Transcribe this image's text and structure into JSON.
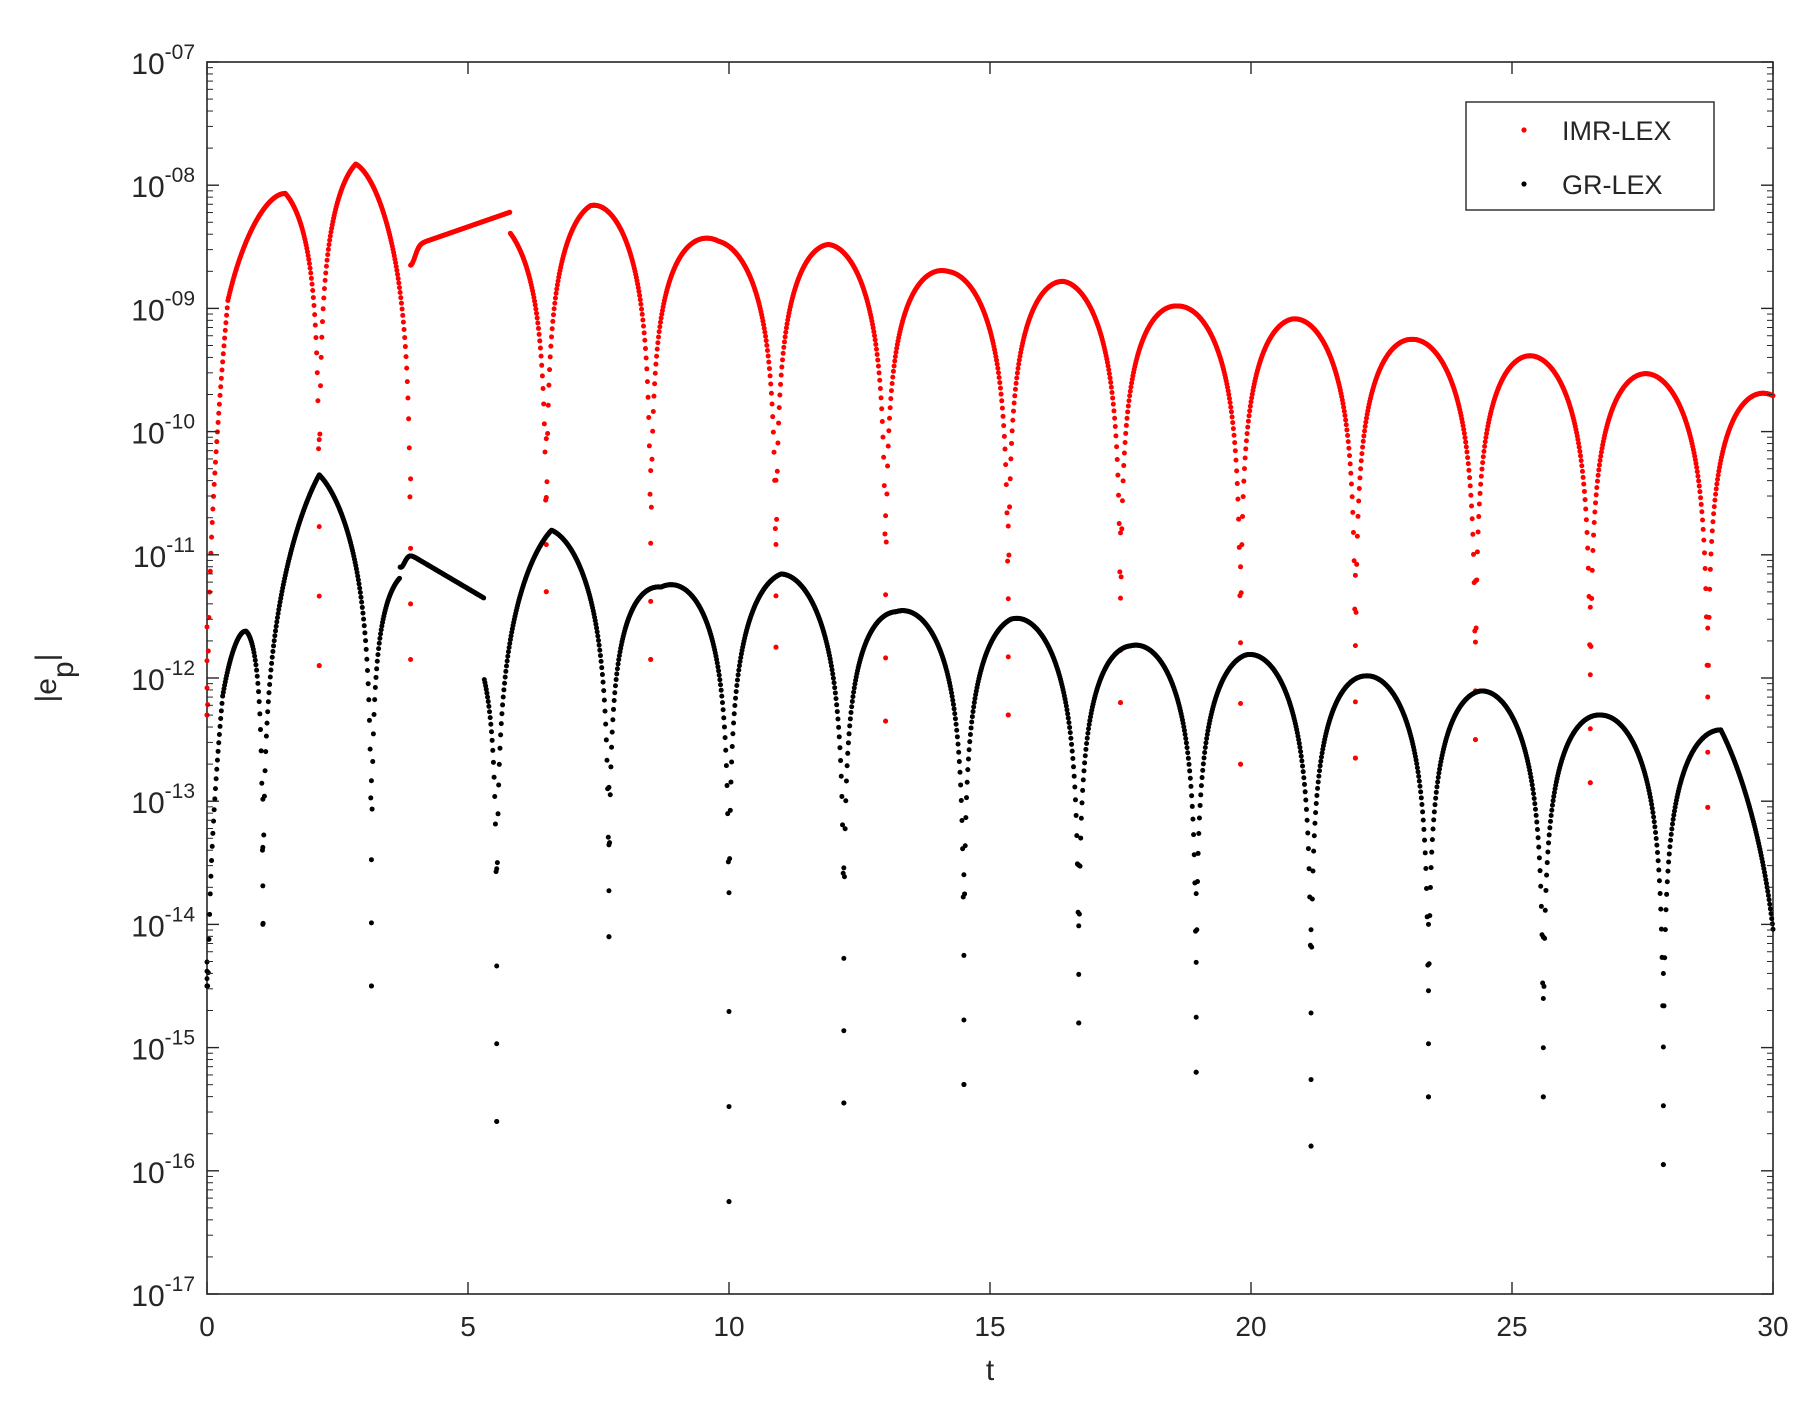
{
  "chart_data": {
    "type": "scatter",
    "title": "",
    "xlabel": "t",
    "ylabel": "|e_p|",
    "ylabel_main": "|e",
    "ylabel_sub": "p",
    "ylabel_close": "|",
    "xlim": [
      0,
      30
    ],
    "ylim": [
      1e-17,
      1e-07
    ],
    "yscale": "log",
    "grid": false,
    "legend_position": "top-right",
    "x_ticks": [
      0,
      5,
      10,
      15,
      20,
      25,
      30
    ],
    "x_tick_labels": [
      "0",
      "5",
      "10",
      "15",
      "20",
      "25",
      "30"
    ],
    "y_tick_exponents": [
      -17,
      -16,
      -15,
      -14,
      -13,
      -12,
      -11,
      -10,
      -9,
      -8,
      -7
    ],
    "y_tick_labels": [
      {
        "base": "10",
        "exp": "-17"
      },
      {
        "base": "10",
        "exp": "-16"
      },
      {
        "base": "10",
        "exp": "-15"
      },
      {
        "base": "10",
        "exp": "-14"
      },
      {
        "base": "10",
        "exp": "-13"
      },
      {
        "base": "10",
        "exp": "-12"
      },
      {
        "base": "10",
        "exp": "-11"
      },
      {
        "base": "10",
        "exp": "-10"
      },
      {
        "base": "10",
        "exp": "-09"
      },
      {
        "base": "10",
        "exp": "-08"
      },
      {
        "base": "10",
        "exp": "-07"
      }
    ],
    "series": [
      {
        "name": "IMR-LEX",
        "color": "#ff0000",
        "marker": "dot",
        "envelope_log10": [
          [
            0.0,
            -10.0
          ],
          [
            0.4,
            -8.6
          ],
          [
            1.5,
            -7.95
          ],
          [
            2.85,
            -7.8
          ],
          [
            4.0,
            -8.45
          ],
          [
            5.8,
            -8.22
          ],
          [
            7.35,
            -8.15
          ],
          [
            9.8,
            -8.45
          ],
          [
            11.9,
            -8.48
          ],
          [
            14.2,
            -8.7
          ],
          [
            16.4,
            -8.78
          ],
          [
            18.6,
            -8.98
          ],
          [
            20.8,
            -9.08
          ],
          [
            23.1,
            -9.25
          ],
          [
            25.3,
            -9.38
          ],
          [
            27.6,
            -9.53
          ],
          [
            30.0,
            -9.7
          ]
        ],
        "zeros_t": [
          0.0,
          2.15,
          3.9,
          6.5,
          8.5,
          10.9,
          13.0,
          15.35,
          17.5,
          19.8,
          22.0,
          24.3,
          26.5,
          28.75
        ],
        "dip_floor_log10": [
          -12.3,
          -11.9,
          -11.85,
          -11.3,
          -11.85,
          -11.75,
          -12.35,
          -12.3,
          -12.2,
          -12.7,
          -12.65,
          -12.5,
          -12.85,
          -13.05
        ],
        "plateau_t": [
          3.9,
          5.8
        ],
        "plateau_log10": [
          -8.5,
          -8.22
        ]
      },
      {
        "name": "GR-LEX",
        "color": "#000000",
        "marker": "dot",
        "envelope_log10": [
          [
            0.0,
            -13.0
          ],
          [
            0.3,
            -12.0
          ],
          [
            0.75,
            -11.5
          ],
          [
            2.15,
            -10.35
          ],
          [
            3.7,
            -10.95
          ],
          [
            5.3,
            -11.35
          ],
          [
            6.6,
            -10.8
          ],
          [
            8.7,
            -11.25
          ],
          [
            11.0,
            -11.15
          ],
          [
            13.2,
            -11.45
          ],
          [
            15.4,
            -11.5
          ],
          [
            17.7,
            -11.73
          ],
          [
            19.9,
            -11.8
          ],
          [
            22.2,
            -11.98
          ],
          [
            24.4,
            -12.1
          ],
          [
            26.7,
            -12.3
          ],
          [
            29.0,
            -12.42
          ],
          [
            30.0,
            -13.3
          ]
        ],
        "zeros_t": [
          0.0,
          1.07,
          3.15,
          5.55,
          7.7,
          10.0,
          12.2,
          14.5,
          16.7,
          18.95,
          21.15,
          23.4,
          25.6,
          27.9
        ],
        "dip_floor_log10": [
          -14.5,
          -14.0,
          -14.5,
          -15.6,
          -14.1,
          -16.25,
          -15.45,
          -15.3,
          -14.8,
          -15.2,
          -15.8,
          -15.4,
          -15.4,
          -15.95
        ],
        "plateau_t": [
          3.7,
          5.3
        ],
        "plateau_log10": [
          -10.95,
          -11.35
        ]
      }
    ]
  }
}
